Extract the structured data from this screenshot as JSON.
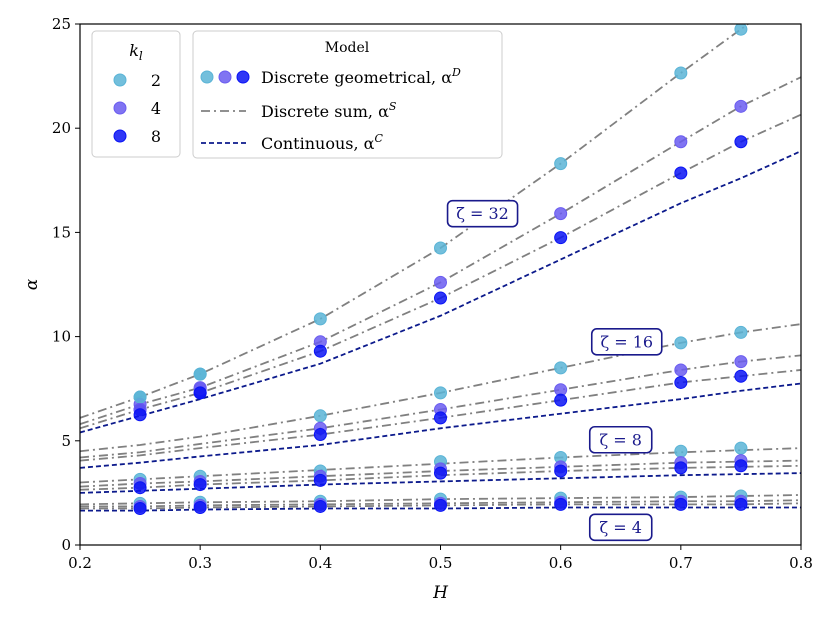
{
  "chart_data": {
    "type": "line",
    "xlabel": "H",
    "ylabel": "α",
    "xlim": [
      0.2,
      0.8
    ],
    "ylim": [
      0,
      25
    ],
    "xticks": [
      "0.2",
      "0.3",
      "0.4",
      "0.5",
      "0.6",
      "0.7",
      "0.8"
    ],
    "yticks": [
      "0",
      "5",
      "10",
      "15",
      "20",
      "25"
    ],
    "grid": false,
    "colors": {
      "k2": "#5ab4d6",
      "k4": "#6a5cf0",
      "k8": "#0a14f5",
      "sum": "#808080",
      "continuous": "#0c1a8c",
      "annotation": "#1a1a8c"
    },
    "legend_kl": {
      "title": "k_l",
      "entries": [
        "2",
        "4",
        "8"
      ],
      "placement": "top-left"
    },
    "legend_model": {
      "title": "Model",
      "entries": [
        "Discrete geometrical, α^D",
        "Discrete sum, α^S",
        "Continuous, α^C"
      ],
      "placement": "top-left"
    },
    "groups": [
      {
        "zeta_label": "ζ = 32",
        "label_at": [
          0.535,
          15.9
        ],
        "discrete": {
          "x": [
            0.25,
            0.3,
            0.4,
            0.5,
            0.6,
            0.7,
            0.75
          ],
          "k2": [
            7.1,
            8.2,
            10.85,
            14.25,
            18.3,
            22.65,
            24.75
          ],
          "k4": [
            6.75,
            7.55,
            9.75,
            12.6,
            15.9,
            19.35,
            21.05
          ],
          "k8": [
            6.5,
            7.3,
            9.3,
            11.85,
            14.75,
            17.85,
            19.35
          ]
        },
        "sum": {
          "x": [
            0.2,
            0.25,
            0.3,
            0.4,
            0.5,
            0.6,
            0.7,
            0.75,
            0.8
          ],
          "k2": [
            6.1,
            7.1,
            8.2,
            10.85,
            14.25,
            18.3,
            22.65,
            24.75,
            26.9
          ],
          "k4": [
            5.8,
            6.75,
            7.55,
            9.75,
            12.6,
            15.9,
            19.35,
            21.05,
            22.45
          ],
          "k8": [
            5.6,
            6.5,
            7.3,
            9.3,
            11.85,
            14.75,
            17.85,
            19.35,
            20.65
          ]
        },
        "continuous": {
          "x": [
            0.2,
            0.25,
            0.3,
            0.4,
            0.5,
            0.6,
            0.7,
            0.75,
            0.8
          ],
          "y": [
            5.4,
            6.2,
            7.0,
            8.7,
            11.0,
            13.7,
            16.4,
            17.6,
            18.9
          ]
        }
      },
      {
        "zeta_label": "ζ = 16",
        "label_at": [
          0.655,
          9.75
        ],
        "discrete": {
          "x": [
            0.25,
            0.3,
            0.4,
            0.5,
            0.6,
            0.7,
            0.75
          ],
          "k2": [
            7.1,
            8.2,
            6.2,
            7.3,
            8.5,
            9.7,
            10.2
          ],
          "k4": [
            6.5,
            7.5,
            5.6,
            6.5,
            7.45,
            8.4,
            8.8
          ],
          "k8": [
            6.25,
            7.3,
            5.3,
            6.1,
            6.95,
            7.8,
            8.1
          ]
        },
        "sum": {
          "x": [
            0.2,
            0.25,
            0.3,
            0.4,
            0.5,
            0.6,
            0.7,
            0.75,
            0.8
          ],
          "k2": [
            4.5,
            4.8,
            5.2,
            6.2,
            7.3,
            8.5,
            9.7,
            10.2,
            10.6
          ],
          "k4": [
            4.2,
            4.45,
            4.85,
            5.6,
            6.5,
            7.45,
            8.4,
            8.8,
            9.1
          ],
          "k8": [
            4.05,
            4.3,
            4.65,
            5.3,
            6.1,
            6.95,
            7.8,
            8.1,
            8.4
          ]
        },
        "continuous": {
          "x": [
            0.2,
            0.25,
            0.3,
            0.4,
            0.5,
            0.6,
            0.7,
            0.75,
            0.8
          ],
          "y": [
            3.7,
            3.95,
            4.25,
            4.8,
            5.6,
            6.3,
            7.0,
            7.4,
            7.75
          ]
        }
      },
      {
        "zeta_label": "ζ = 8",
        "label_at": [
          0.65,
          5.05
        ],
        "discrete": {
          "x": [
            0.25,
            0.3,
            0.4,
            0.5,
            0.6,
            0.7,
            0.75
          ],
          "k2": [
            3.15,
            3.3,
            3.55,
            4.0,
            4.2,
            4.5,
            4.65
          ],
          "k4": [
            2.95,
            3.05,
            3.3,
            3.65,
            3.75,
            3.95,
            4.05
          ],
          "k8": [
            2.75,
            2.9,
            3.1,
            3.45,
            3.55,
            3.7,
            3.8
          ]
        },
        "sum": {
          "x": [
            0.2,
            0.25,
            0.3,
            0.4,
            0.5,
            0.6,
            0.7,
            0.75,
            0.8
          ],
          "k2": [
            3.0,
            3.15,
            3.3,
            3.6,
            3.9,
            4.2,
            4.45,
            4.55,
            4.65
          ],
          "k4": [
            2.8,
            2.95,
            3.05,
            3.3,
            3.55,
            3.75,
            3.95,
            4.0,
            4.05
          ],
          "k8": [
            2.65,
            2.75,
            2.9,
            3.1,
            3.35,
            3.55,
            3.7,
            3.75,
            3.8
          ]
        },
        "continuous": {
          "x": [
            0.2,
            0.25,
            0.3,
            0.4,
            0.5,
            0.6,
            0.7,
            0.75,
            0.8
          ],
          "y": [
            2.5,
            2.6,
            2.7,
            2.9,
            3.05,
            3.2,
            3.35,
            3.4,
            3.45
          ]
        }
      },
      {
        "zeta_label": "ζ = 4",
        "label_at": [
          0.65,
          0.85
        ],
        "discrete": {
          "x": [
            0.25,
            0.3,
            0.4,
            0.5,
            0.6,
            0.7,
            0.75
          ],
          "k2": [
            2.0,
            2.05,
            2.1,
            2.2,
            2.25,
            2.3,
            2.35
          ],
          "k4": [
            1.85,
            1.9,
            1.95,
            2.0,
            2.05,
            2.1,
            2.1
          ],
          "k8": [
            1.75,
            1.8,
            1.85,
            1.9,
            1.95,
            1.95,
            1.95
          ]
        },
        "sum": {
          "x": [
            0.2,
            0.25,
            0.3,
            0.4,
            0.5,
            0.6,
            0.7,
            0.75,
            0.8
          ],
          "k2": [
            1.95,
            2.0,
            2.05,
            2.1,
            2.2,
            2.25,
            2.3,
            2.35,
            2.4
          ],
          "k4": [
            1.85,
            1.85,
            1.9,
            1.95,
            2.0,
            2.05,
            2.1,
            2.1,
            2.15
          ],
          "k8": [
            1.75,
            1.75,
            1.8,
            1.85,
            1.9,
            1.95,
            1.95,
            1.95,
            2.0
          ]
        },
        "continuous": {
          "x": [
            0.2,
            0.25,
            0.3,
            0.4,
            0.5,
            0.6,
            0.7,
            0.75,
            0.8
          ],
          "y": [
            1.65,
            1.65,
            1.7,
            1.75,
            1.75,
            1.8,
            1.8,
            1.8,
            1.8
          ]
        }
      }
    ]
  }
}
